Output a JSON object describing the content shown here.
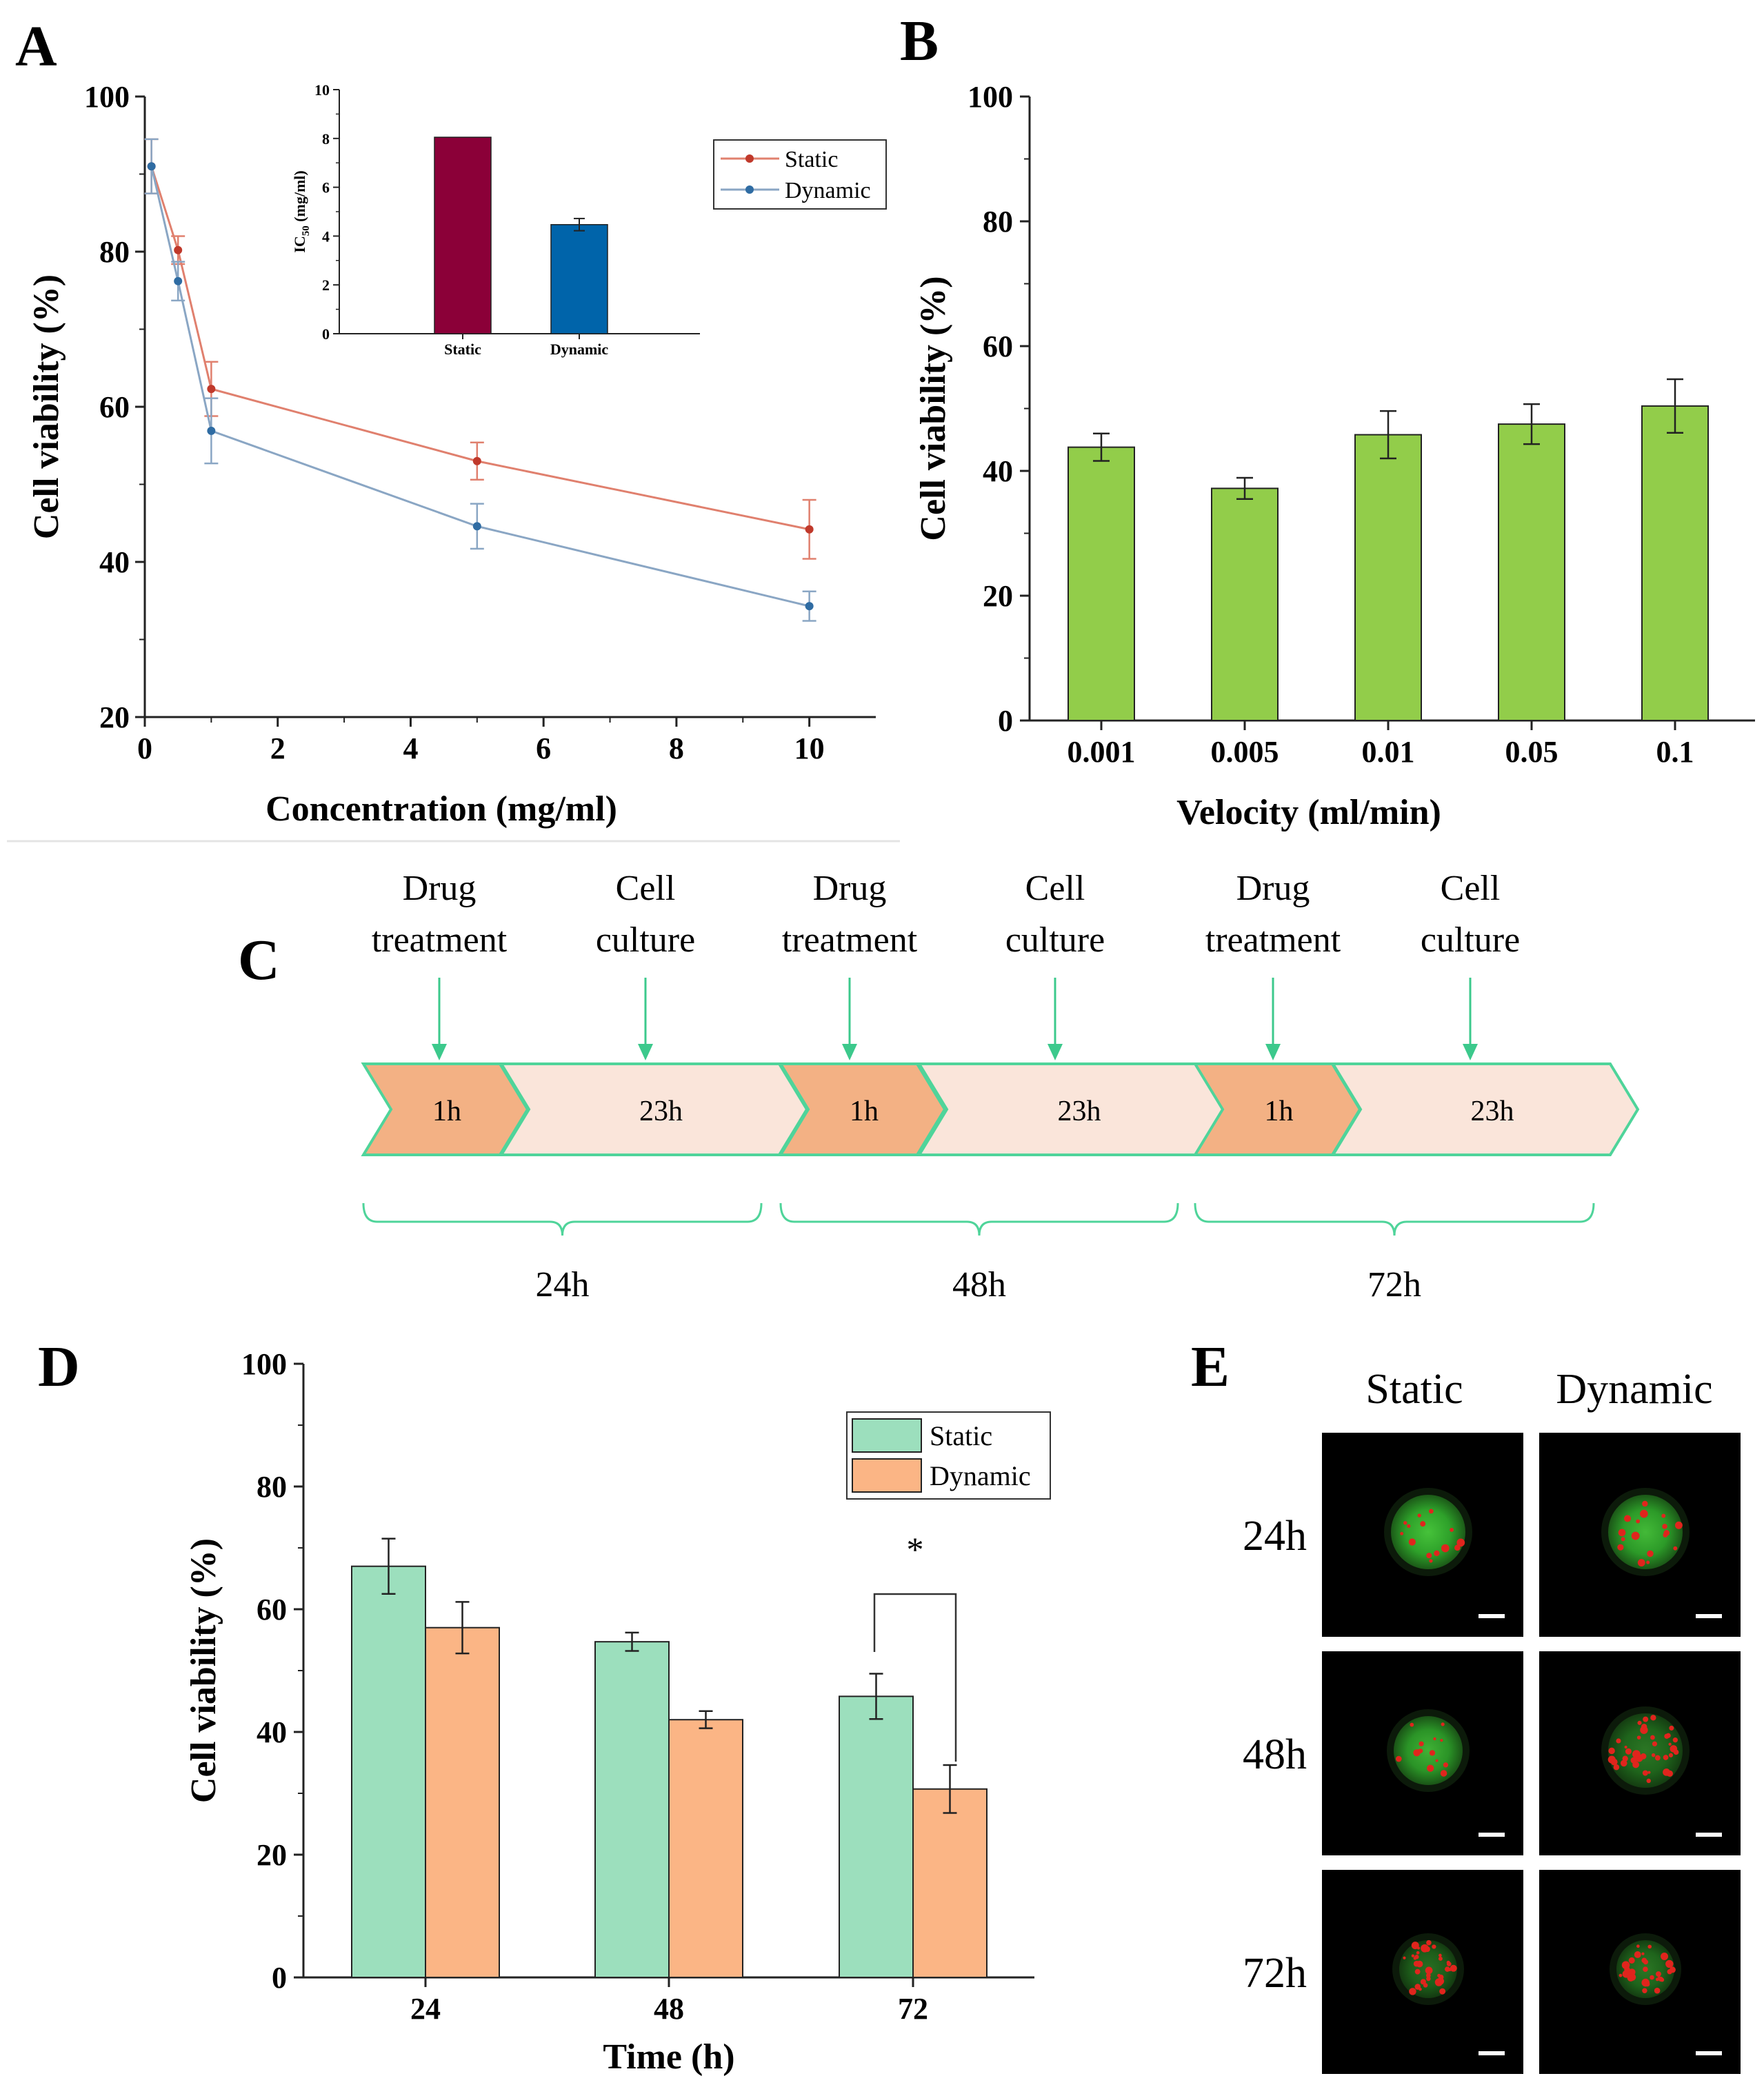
{
  "colors": {
    "static_line": "#c0392b",
    "dynamic_line": "#2f6ca3",
    "line_thin": "#8aa6c4",
    "inset_static": "#8b0038",
    "inset_dynamic": "#0064aa",
    "bar_green": "#92cd4a",
    "d_static": "#9cdfbd",
    "d_dynamic": "#fbb585",
    "timeline_stroke": "#4fd49a",
    "chev_dark": "#f3b184",
    "chev_light": "#fae5da",
    "arrow": "#3cc98c"
  },
  "panels": {
    "A": {
      "letter": "A"
    },
    "B": {
      "letter": "B"
    },
    "C": {
      "letter": "C",
      "stages": [
        {
          "line1": "Drug",
          "line2": "treatment",
          "duration": "1h"
        },
        {
          "line1": "Cell",
          "line2": "culture",
          "duration": "23h"
        },
        {
          "line1": "Drug",
          "line2": "treatment",
          "duration": "1h"
        },
        {
          "line1": "Cell",
          "line2": "culture",
          "duration": "23h"
        },
        {
          "line1": "Drug",
          "line2": "treatment",
          "duration": "1h"
        },
        {
          "line1": "Cell",
          "line2": "culture",
          "duration": "23h"
        }
      ],
      "periods": [
        "24h",
        "48h",
        "72h"
      ]
    },
    "D": {
      "letter": "D",
      "significance": "*"
    },
    "E": {
      "letter": "E",
      "col_labels": [
        "Static",
        "Dynamic"
      ],
      "row_labels": [
        "24h",
        "48h",
        "72h"
      ],
      "images": [
        [
          "fluorescence-static-24h",
          "fluorescence-dynamic-24h"
        ],
        [
          "fluorescence-static-48h",
          "fluorescence-dynamic-48h"
        ],
        [
          "fluorescence-static-72h",
          "fluorescence-dynamic-72h"
        ]
      ]
    }
  },
  "chart_data": [
    {
      "id": "A",
      "type": "line",
      "xlabel": "Concentration (mg/ml)",
      "ylabel": "Cell viability (%)",
      "xlim": [
        0,
        11
      ],
      "ylim": [
        20,
        100
      ],
      "xticks": [
        0,
        2,
        4,
        6,
        8,
        10
      ],
      "yticks": [
        20,
        40,
        60,
        80,
        100
      ],
      "x": [
        0.1,
        0.5,
        1,
        5,
        10
      ],
      "series": [
        {
          "name": "Static",
          "values": [
            91,
            80.2,
            62.3,
            53,
            44.2
          ],
          "errors": [
            3.5,
            1.8,
            3.5,
            2.4,
            3.8
          ]
        },
        {
          "name": "Dynamic",
          "values": [
            91,
            76.2,
            56.9,
            44.6,
            34.3
          ],
          "errors": [
            3.5,
            2.5,
            4.2,
            2.9,
            1.9
          ]
        }
      ],
      "legend_position": "top-right"
    },
    {
      "id": "A-inset",
      "type": "bar",
      "categories": [
        "Static",
        "Dynamic"
      ],
      "values": [
        8.05,
        4.47
      ],
      "errors": [
        0,
        0.25
      ],
      "ylabel": "IC50 (mg/ml)",
      "ylabel_main": "IC",
      "ylabel_sub": "50",
      "ylabel_unit": "(mg/ml)",
      "ylim": [
        0,
        10
      ],
      "yticks": [
        0,
        2,
        4,
        6,
        8,
        10
      ]
    },
    {
      "id": "B",
      "type": "bar",
      "categories": [
        "0.001",
        "0.005",
        "0.01",
        "0.05",
        "0.1"
      ],
      "values": [
        43.8,
        37.2,
        45.8,
        47.5,
        50.4
      ],
      "errors": [
        2.2,
        1.7,
        3.8,
        3.2,
        4.3
      ],
      "xlabel": "Velocity (ml/min)",
      "ylabel": "Cell viability (%)",
      "ylim": [
        0,
        100
      ],
      "yticks": [
        0,
        20,
        40,
        60,
        80,
        100
      ]
    },
    {
      "id": "D",
      "type": "bar",
      "categories": [
        "24",
        "48",
        "72"
      ],
      "series": [
        {
          "name": "Static",
          "values": [
            67,
            54.7,
            45.8
          ],
          "errors": [
            4.5,
            1.5,
            3.7
          ]
        },
        {
          "name": "Dynamic",
          "values": [
            57,
            42,
            30.7
          ],
          "errors": [
            4.2,
            1.4,
            3.9
          ]
        }
      ],
      "xlabel": "Time (h)",
      "ylabel": "Cell viability (%)",
      "ylim": [
        0,
        100
      ],
      "yticks": [
        0,
        20,
        40,
        60,
        80,
        100
      ],
      "legend_position": "top-right"
    }
  ]
}
